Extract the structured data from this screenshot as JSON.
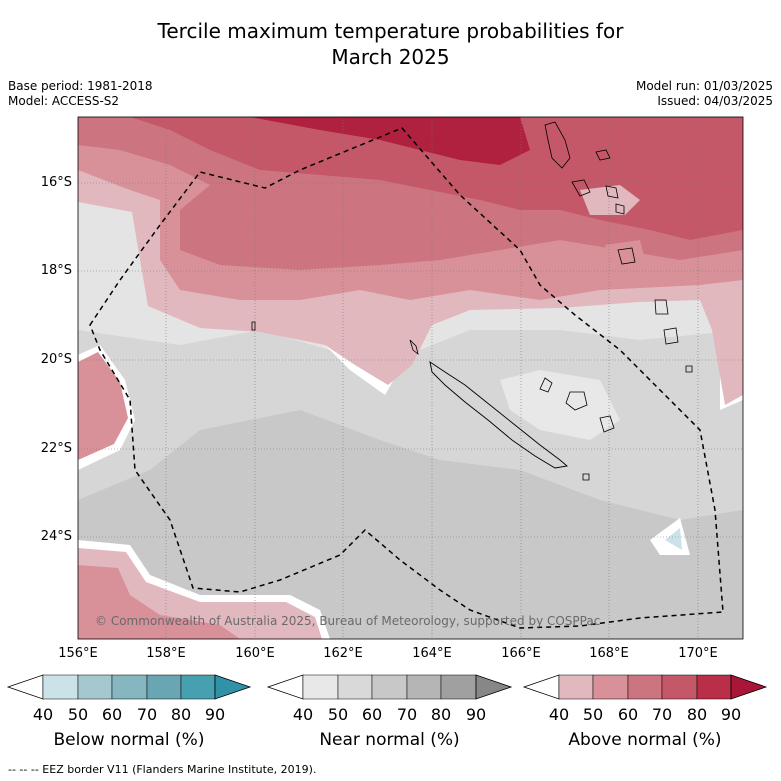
{
  "title_line1": "Tercile maximum temperature probabilities for",
  "title_line2": "March 2025",
  "base_period": "Base period: 1981-2018",
  "model": "Model: ACCESS-S2",
  "model_run": "Model run: 01/03/2025",
  "issued": "Issued: 04/03/2025",
  "lat_labels": [
    "16°S",
    "18°S",
    "20°S",
    "22°S",
    "24°S"
  ],
  "lon_labels": [
    "156°E",
    "158°E",
    "160°E",
    "162°E",
    "164°E",
    "166°E",
    "168°E",
    "170°E"
  ],
  "copyright": "© Commonwealth of Australia 2025, Bureau of Meteorology, supported by COSPPac",
  "colorbars": [
    {
      "label": "Below normal (%)",
      "ticks": [
        "40",
        "50",
        "60",
        "70",
        "80",
        "90"
      ],
      "colors": [
        "#ffffff",
        "#cbe3e8",
        "#a5c8cf",
        "#86b6c0",
        "#68a6b4",
        "#46a0b0",
        "#2f92a8"
      ]
    },
    {
      "label": "Near normal (%)",
      "ticks": [
        "40",
        "50",
        "60",
        "70",
        "80",
        "90"
      ],
      "colors": [
        "#ffffff",
        "#e8e8e8",
        "#d9d9d9",
        "#c8c8c8",
        "#b5b5b5",
        "#a0a0a0",
        "#878787"
      ]
    },
    {
      "label": "Above normal (%)",
      "ticks": [
        "40",
        "50",
        "60",
        "70",
        "80",
        "90"
      ],
      "colors": [
        "#ffffff",
        "#e2b8bf",
        "#d89099",
        "#cc7580",
        "#c55868",
        "#ba2e48",
        "#a8163a"
      ]
    }
  ],
  "footer": "--  --  -- EEZ border V11 (Flanders Marine Institute, 2019).",
  "colors": {
    "near_light": "#e4e4e4",
    "near_mid": "#d6d6d6",
    "near_dark": "#c8c8c8",
    "above_50": "#e2b8bf",
    "above_60": "#d89099",
    "above_70": "#cc7580",
    "above_80": "#c55868",
    "above_90": "#b0203f",
    "below_50": "#cbe3e8"
  }
}
